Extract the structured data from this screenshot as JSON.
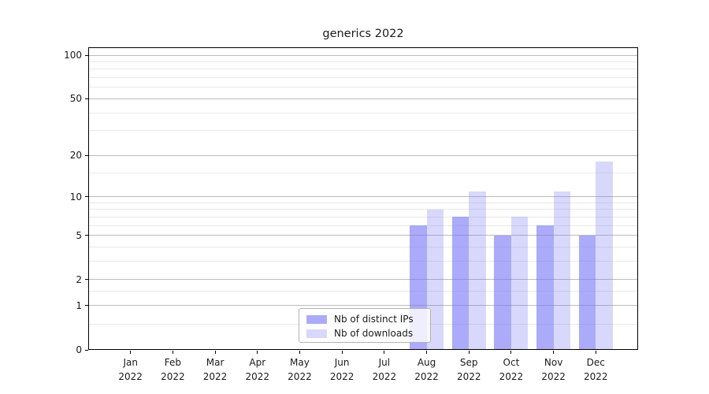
{
  "title": "generics 2022",
  "colors": {
    "bar_distinct_ips": "rgba(115,115,245,0.60)",
    "bar_downloads": "rgba(115,115,245,0.28)",
    "grid_major": "#bbbbbb",
    "grid_minor": "#e9e9e9",
    "spine": "#000000",
    "text": "#1a1a1a",
    "legend_border": "#b3b3b3"
  },
  "y_axis": {
    "tick_labels": [
      "0",
      "1",
      "2",
      "5",
      "10",
      "20",
      "50",
      "100"
    ]
  },
  "x_axis": {
    "months": [
      "Jan",
      "Feb",
      "Mar",
      "Apr",
      "May",
      "Jun",
      "Jul",
      "Aug",
      "Sep",
      "Oct",
      "Nov",
      "Dec"
    ],
    "year": "2022"
  },
  "chart_data": {
    "type": "bar",
    "title": "generics 2022",
    "categories": [
      "Jan 2022",
      "Feb 2022",
      "Mar 2022",
      "Apr 2022",
      "May 2022",
      "Jun 2022",
      "Jul 2022",
      "Aug 2022",
      "Sep 2022",
      "Oct 2022",
      "Nov 2022",
      "Dec 2022"
    ],
    "series": [
      {
        "name": "Nb of distinct IPs",
        "values": [
          0,
          0,
          0,
          0,
          0,
          0,
          0,
          6,
          7,
          5,
          6,
          5
        ]
      },
      {
        "name": "Nb of downloads",
        "values": [
          0,
          0,
          0,
          0,
          0,
          0,
          0,
          8,
          11,
          7,
          11,
          18
        ]
      }
    ],
    "xlabel": "",
    "ylabel": "",
    "yscale": "log1p",
    "ylim": [
      0,
      113
    ],
    "y_major_ticks": [
      0,
      1,
      2,
      5,
      10,
      20,
      50,
      100
    ],
    "y_minor_ticks": [
      0.5,
      1.5,
      3,
      4,
      6,
      7,
      8,
      9,
      15,
      30,
      40,
      60,
      70,
      80,
      90
    ],
    "grid": "both",
    "legend_position": "lower center"
  }
}
